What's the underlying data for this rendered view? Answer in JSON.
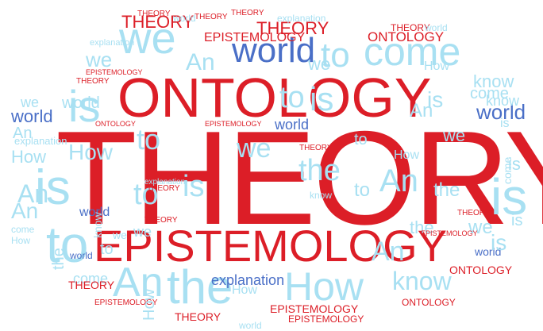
{
  "cloud": {
    "theory": "THEORY",
    "ontology": "ONTOLOGY",
    "epistemology": "EPISTEMOLOGY",
    "world": "world",
    "we": "we",
    "is": "is",
    "to": "to",
    "the": "the",
    "an": "An",
    "how": "How",
    "know": "know",
    "come": "come",
    "explanation": "explanation"
  },
  "colors": {
    "primary_red": "#dc1e27",
    "light_blue": "#a8e0f2",
    "medium_blue": "#4a6fc7",
    "background": "#ffffff"
  }
}
